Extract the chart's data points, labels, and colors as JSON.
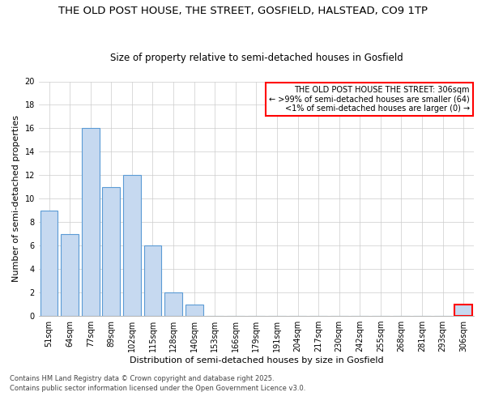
{
  "title": "THE OLD POST HOUSE, THE STREET, GOSFIELD, HALSTEAD, CO9 1TP",
  "subtitle": "Size of property relative to semi-detached houses in Gosfield",
  "xlabel": "Distribution of semi-detached houses by size in Gosfield",
  "ylabel": "Number of semi-detached properties",
  "categories": [
    "51sqm",
    "64sqm",
    "77sqm",
    "89sqm",
    "102sqm",
    "115sqm",
    "128sqm",
    "140sqm",
    "153sqm",
    "166sqm",
    "179sqm",
    "191sqm",
    "204sqm",
    "217sqm",
    "230sqm",
    "242sqm",
    "255sqm",
    "268sqm",
    "281sqm",
    "293sqm",
    "306sqm"
  ],
  "values": [
    9,
    7,
    16,
    11,
    12,
    6,
    2,
    1,
    0,
    0,
    0,
    0,
    0,
    0,
    0,
    0,
    0,
    0,
    0,
    0,
    1
  ],
  "bar_color": "#c6d9f0",
  "bar_edge_color": "#5b9bd5",
  "highlight_index": 20,
  "highlight_bar_color": "#c6d9f0",
  "highlight_bar_edge_color": "#ff0000",
  "legend_box_color": "#ff0000",
  "legend_title": "THE OLD POST HOUSE THE STREET: 306sqm",
  "legend_line1": "← >99% of semi-detached houses are smaller (64)",
  "legend_line2": "<1% of semi-detached houses are larger (0) →",
  "ylim": [
    0,
    20
  ],
  "yticks": [
    0,
    2,
    4,
    6,
    8,
    10,
    12,
    14,
    16,
    18,
    20
  ],
  "footer1": "Contains HM Land Registry data © Crown copyright and database right 2025.",
  "footer2": "Contains public sector information licensed under the Open Government Licence v3.0.",
  "title_fontsize": 9.5,
  "subtitle_fontsize": 8.5,
  "axis_label_fontsize": 8,
  "tick_fontsize": 7,
  "legend_fontsize": 7,
  "footer_fontsize": 6,
  "background_color": "#ffffff",
  "font_family": "DejaVu Sans"
}
